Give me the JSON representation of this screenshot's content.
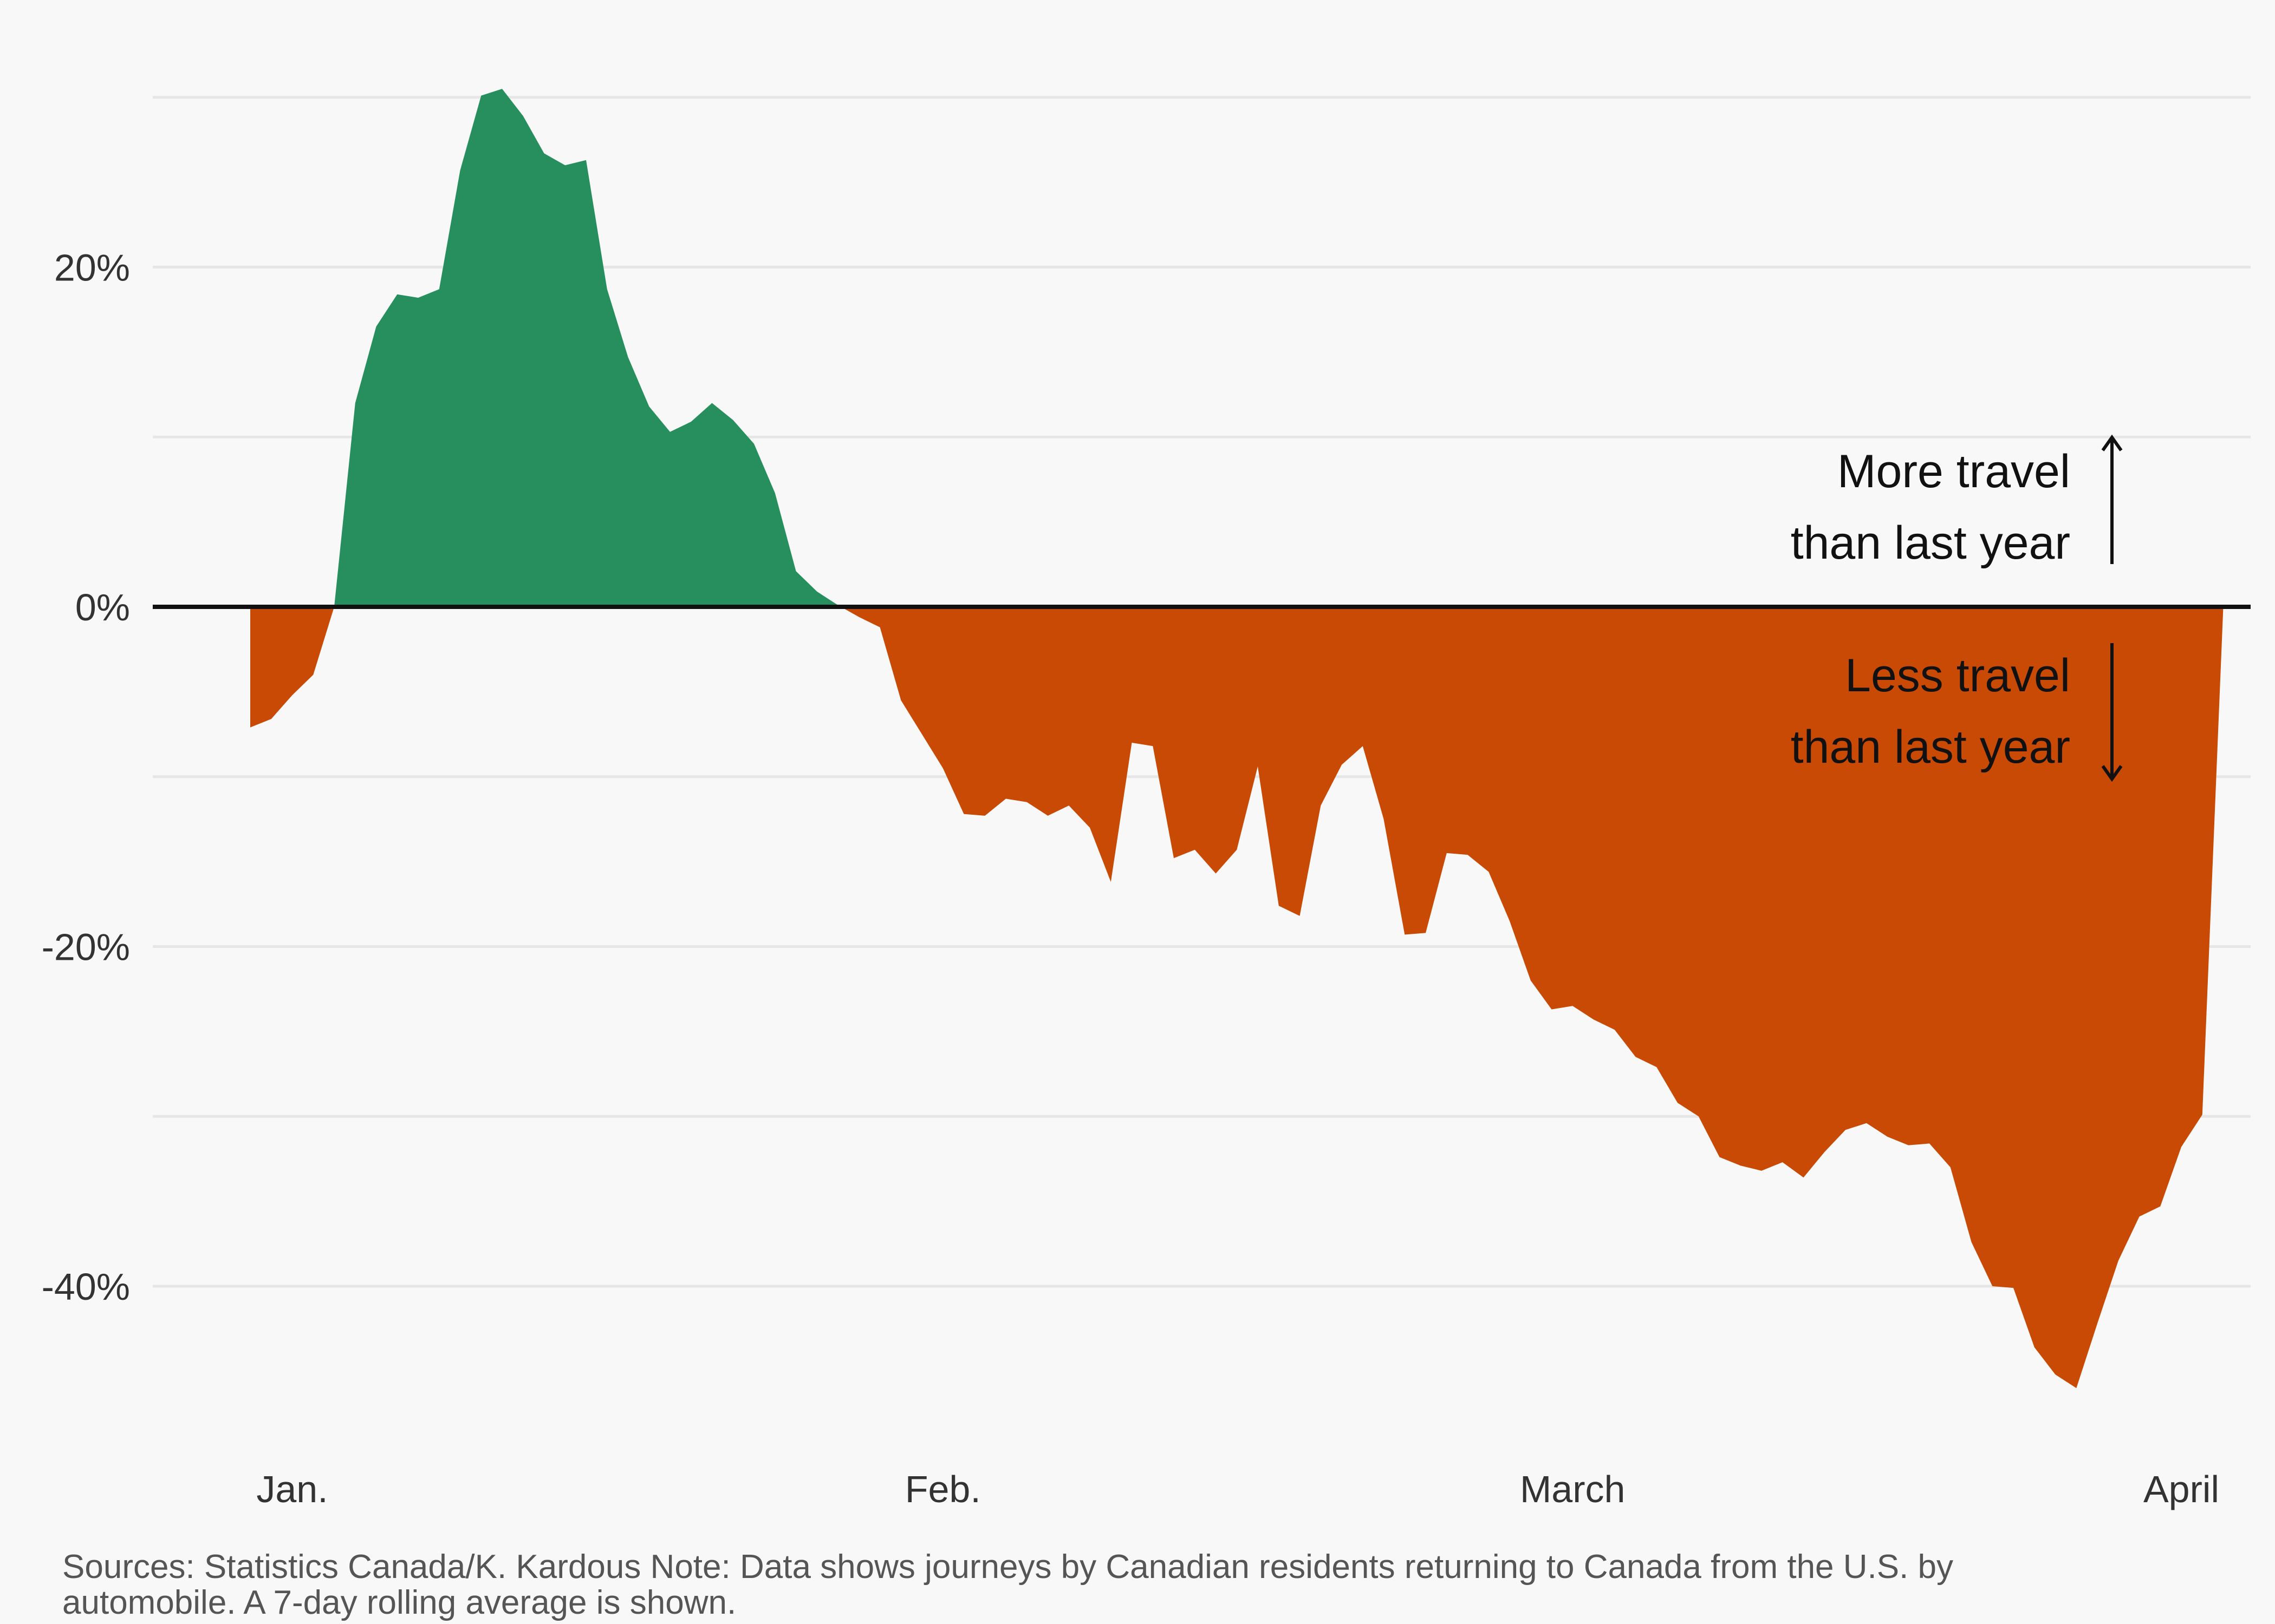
{
  "chart_data": {
    "type": "area",
    "title": "",
    "xlabel": "",
    "ylabel": "",
    "x_unit": "days since late December (day 0 = first data point)",
    "x_ticks": [
      {
        "label": "Jan.",
        "x": 2
      },
      {
        "label": "Feb.",
        "x": 33
      },
      {
        "label": "March",
        "x": 63
      },
      {
        "label": "April",
        "x": 92
      }
    ],
    "y_ticks": [
      {
        "label": "20%",
        "value": 20
      },
      {
        "label": "0%",
        "value": 0
      },
      {
        "label": "-20%",
        "value": -20
      },
      {
        "label": "-40%",
        "value": -40
      }
    ],
    "y_gridlines": [
      30,
      20,
      10,
      0,
      -10,
      -20,
      -30,
      -40
    ],
    "ylim": [
      -50,
      33
    ],
    "xlim": [
      -4.5,
      95
    ],
    "grid": true,
    "colors": {
      "positive": "#268f5d",
      "negative": "#c94a05",
      "zero_line": "#111111",
      "grid": "#e6e6e6"
    },
    "values": [
      -7.1,
      -6.6,
      -5.2,
      -4.0,
      0.0,
      12.0,
      16.5,
      18.4,
      18.2,
      18.7,
      25.7,
      30.1,
      30.5,
      28.9,
      26.7,
      26.0,
      26.3,
      18.7,
      14.7,
      11.8,
      10.3,
      10.9,
      12.0,
      11.0,
      9.6,
      6.7,
      2.1,
      0.9,
      0.1,
      -0.6,
      -1.2,
      -5.5,
      -7.5,
      -9.5,
      -12.2,
      -12.3,
      -11.3,
      -11.5,
      -12.3,
      -11.7,
      -13.0,
      -16.2,
      -8.0,
      -8.2,
      -14.8,
      -14.3,
      -15.7,
      -14.3,
      -9.4,
      -17.6,
      -18.2,
      -11.7,
      -9.3,
      -8.2,
      -12.5,
      -19.3,
      -19.2,
      -14.5,
      -14.6,
      -15.6,
      -18.5,
      -22.0,
      -23.7,
      -23.5,
      -24.3,
      -24.9,
      -26.5,
      -27.1,
      -29.2,
      -30.0,
      -32.4,
      -32.9,
      -33.2,
      -32.7,
      -33.6,
      -32.1,
      -30.8,
      -30.4,
      -31.2,
      -31.7,
      -31.6,
      -33.0,
      -37.4,
      -40.0,
      -40.1,
      -43.6,
      -45.2,
      -46.0,
      -42.2,
      -38.5,
      -35.9,
      -35.3,
      -31.8,
      -29.9,
      0.0
    ]
  },
  "annotations": {
    "more_line1": "More travel",
    "more_line2": "than last year",
    "less_line1": "Less travel",
    "less_line2": "than last year"
  },
  "source_note": "Sources: Statistics Canada/K. Kardous Note: Data shows journeys by Canadian residents returning to Canada from the U.S. by automobile. A 7-day rolling average is shown."
}
